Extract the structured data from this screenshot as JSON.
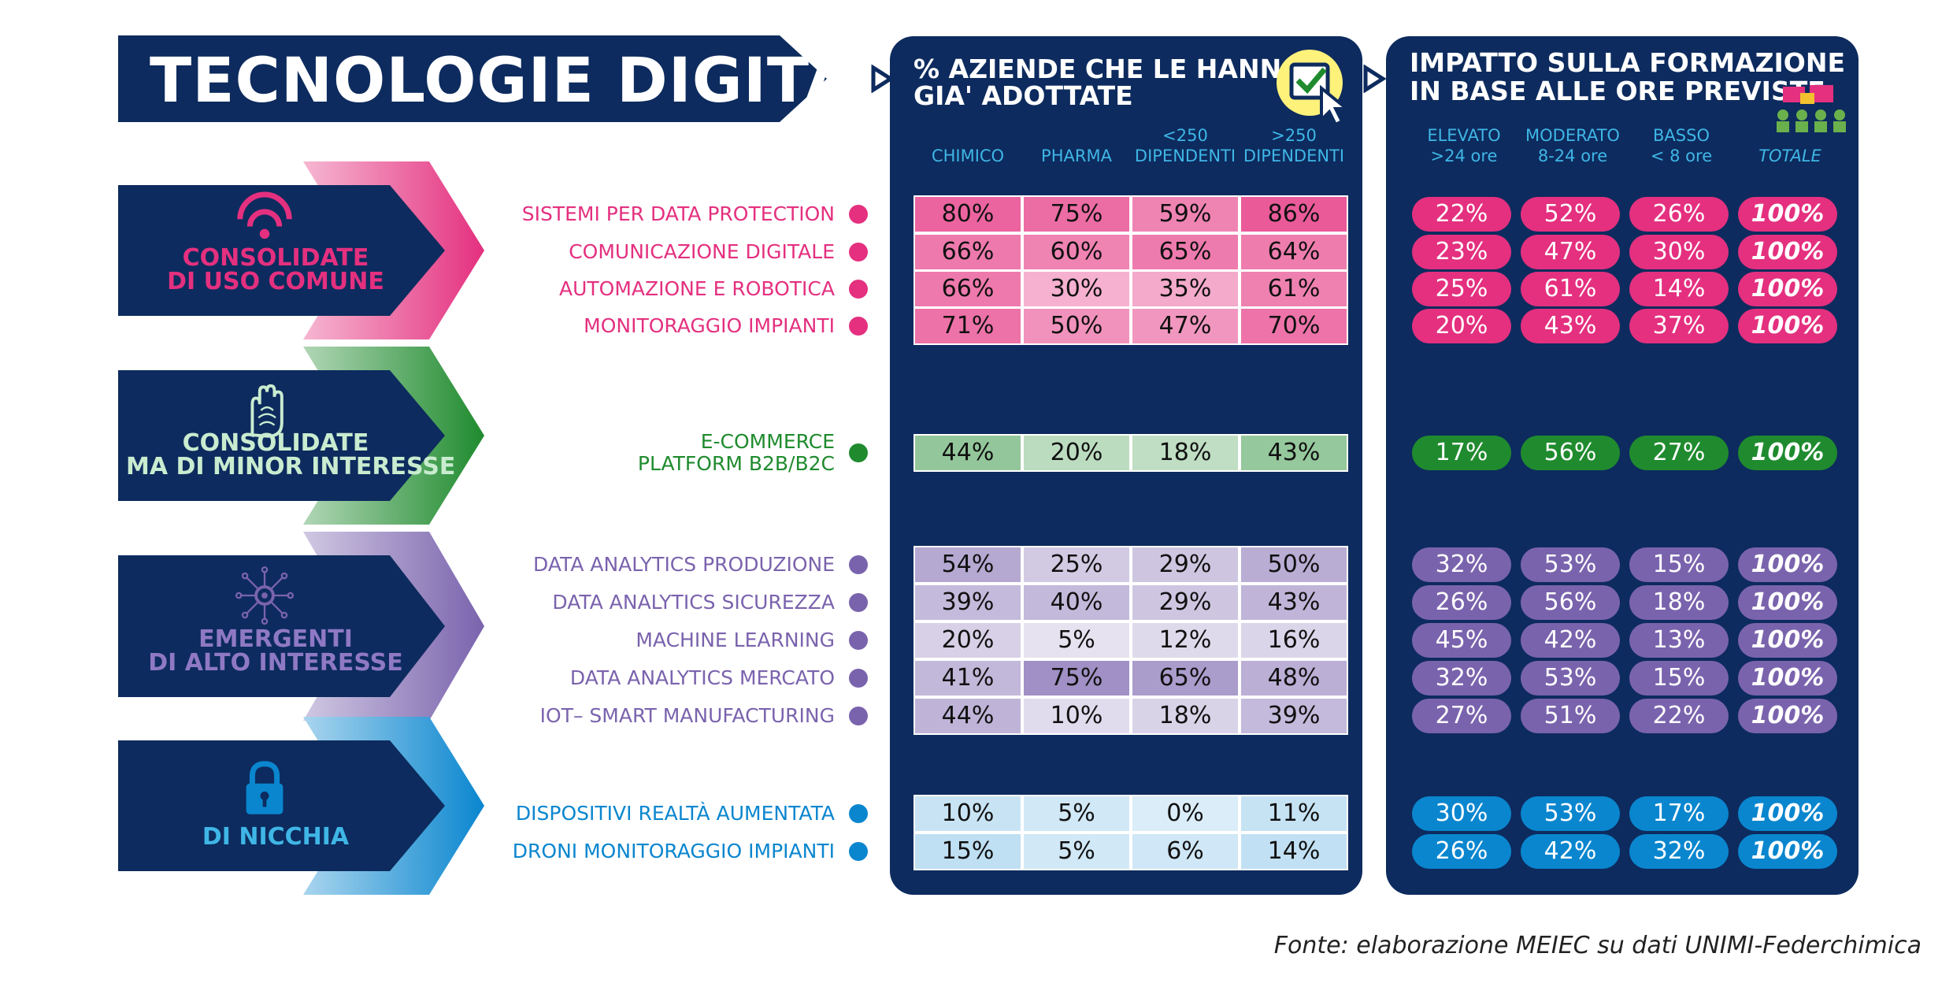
{
  "title": "TECNOLOGIE DIGITALI",
  "source": "Fonte: elaborazione MEIEC su dati UNIMI-Federchimica",
  "colors": {
    "navy": "#0d2b5e",
    "header_cyan": "#3fb6e6",
    "pink": "#e4307f",
    "green": "#1f8b2e",
    "purple": "#7a63ad",
    "blue": "#0a86cf"
  },
  "icons": [
    "wifi-signal-icon",
    "fingerprint-hand-icon",
    "network-nodes-icon",
    "padlock-icon",
    "checkbox-cursor-icon",
    "people-training-icon"
  ],
  "chart_data": [
    {
      "type": "table",
      "title": "% AZIENDE CHE LE HANNO GIA' ADOTTATE",
      "columns": [
        {
          "line1": "",
          "line2": "CHIMICO"
        },
        {
          "line1": "",
          "line2": "PHARMA"
        },
        {
          "line1": "<250",
          "line2": "DIPENDENTI"
        },
        {
          "line1": ">250",
          "line2": "DIPENDENTI"
        }
      ],
      "unit": "%",
      "rows": [
        {
          "group": "consolidate",
          "label": "SISTEMI PER DATA PROTECTION",
          "values": [
            80,
            75,
            59,
            86
          ]
        },
        {
          "group": "consolidate",
          "label": "COMUNICAZIONE DIGITALE",
          "values": [
            66,
            60,
            65,
            64
          ]
        },
        {
          "group": "consolidate",
          "label": "AUTOMAZIONE E ROBOTICA",
          "values": [
            66,
            30,
            35,
            61
          ]
        },
        {
          "group": "consolidate",
          "label": "MONITORAGGIO IMPIANTI",
          "values": [
            71,
            50,
            47,
            70
          ]
        },
        {
          "group": "minor",
          "label": "E-COMMERCE\nPLATFORM B2B/B2C",
          "values": [
            44,
            20,
            18,
            43
          ]
        },
        {
          "group": "emergenti",
          "label": "DATA ANALYTICS PRODUZIONE",
          "values": [
            54,
            25,
            29,
            50
          ]
        },
        {
          "group": "emergenti",
          "label": "DATA ANALYTICS SICUREZZA",
          "values": [
            39,
            40,
            29,
            43
          ]
        },
        {
          "group": "emergenti",
          "label": "MACHINE LEARNING",
          "values": [
            20,
            5,
            12,
            16
          ]
        },
        {
          "group": "emergenti",
          "label": "DATA ANALYTICS MERCATO",
          "values": [
            41,
            75,
            65,
            48
          ]
        },
        {
          "group": "emergenti",
          "label": "IOT– SMART MANUFACTURING",
          "values": [
            44,
            10,
            18,
            39
          ]
        },
        {
          "group": "nicchia",
          "label": "DISPOSITIVI REALTÀ AUMENTATA",
          "values": [
            10,
            5,
            0,
            11
          ]
        },
        {
          "group": "nicchia",
          "label": "DRONI MONITORAGGIO IMPIANTI",
          "values": [
            15,
            5,
            6,
            14
          ]
        }
      ]
    },
    {
      "type": "table",
      "title": "IMPATTO SULLA FORMAZIONE IN BASE ALLE ORE PREVISTE",
      "columns": [
        {
          "line1": "ELEVATO",
          "line2": ">24 ore"
        },
        {
          "line1": "MODERATO",
          "line2": "8-24 ore"
        },
        {
          "line1": "BASSO",
          "line2": "< 8 ore"
        },
        {
          "line1": "",
          "line2": "TOTALE"
        }
      ],
      "unit": "%",
      "rows": [
        {
          "group": "consolidate",
          "values": [
            22,
            52,
            26,
            100
          ]
        },
        {
          "group": "consolidate",
          "values": [
            23,
            47,
            30,
            100
          ]
        },
        {
          "group": "consolidate",
          "values": [
            25,
            61,
            14,
            100
          ]
        },
        {
          "group": "consolidate",
          "values": [
            20,
            43,
            37,
            100
          ]
        },
        {
          "group": "minor",
          "values": [
            17,
            56,
            27,
            100
          ]
        },
        {
          "group": "emergenti",
          "values": [
            32,
            53,
            15,
            100
          ]
        },
        {
          "group": "emergenti",
          "values": [
            26,
            56,
            18,
            100
          ]
        },
        {
          "group": "emergenti",
          "values": [
            45,
            42,
            13,
            100
          ]
        },
        {
          "group": "emergenti",
          "values": [
            32,
            53,
            15,
            100
          ]
        },
        {
          "group": "emergenti",
          "values": [
            27,
            51,
            22,
            100
          ]
        },
        {
          "group": "nicchia",
          "values": [
            30,
            53,
            17,
            100
          ]
        },
        {
          "group": "nicchia",
          "values": [
            26,
            42,
            32,
            100
          ]
        }
      ]
    }
  ],
  "panel_titles": {
    "adopt_line1": "% AZIENDE CHE LE HANNO",
    "adopt_line2": "GIA' ADOTTATE",
    "impact_line1": "IMPATTO SULLA FORMAZIONE",
    "impact_line2": "IN BASE ALLE ORE PREVISTE"
  },
  "categories": [
    {
      "key": "consolidate",
      "line1": "CONSOLIDATE",
      "line2": "DI USO COMUNE",
      "color": "#e4307f",
      "text_color": "#e4307f",
      "icon": "wifi-signal-icon"
    },
    {
      "key": "minor",
      "line1": "CONSOLIDATE",
      "line2": "MA DI MINOR INTERESSE",
      "color": "#1f8b2e",
      "text_color": "#c9ecd0",
      "icon": "fingerprint-hand-icon"
    },
    {
      "key": "emergenti",
      "line1": "EMERGENTI",
      "line2": "DI ALTO INTERESSE",
      "color": "#7a63ad",
      "text_color": "#8f79c4",
      "icon": "network-nodes-icon"
    },
    {
      "key": "nicchia",
      "line1": "",
      "line2": "DI NICCHIA",
      "color": "#0a86cf",
      "text_color": "#3fb6e6",
      "icon": "padlock-icon"
    }
  ]
}
